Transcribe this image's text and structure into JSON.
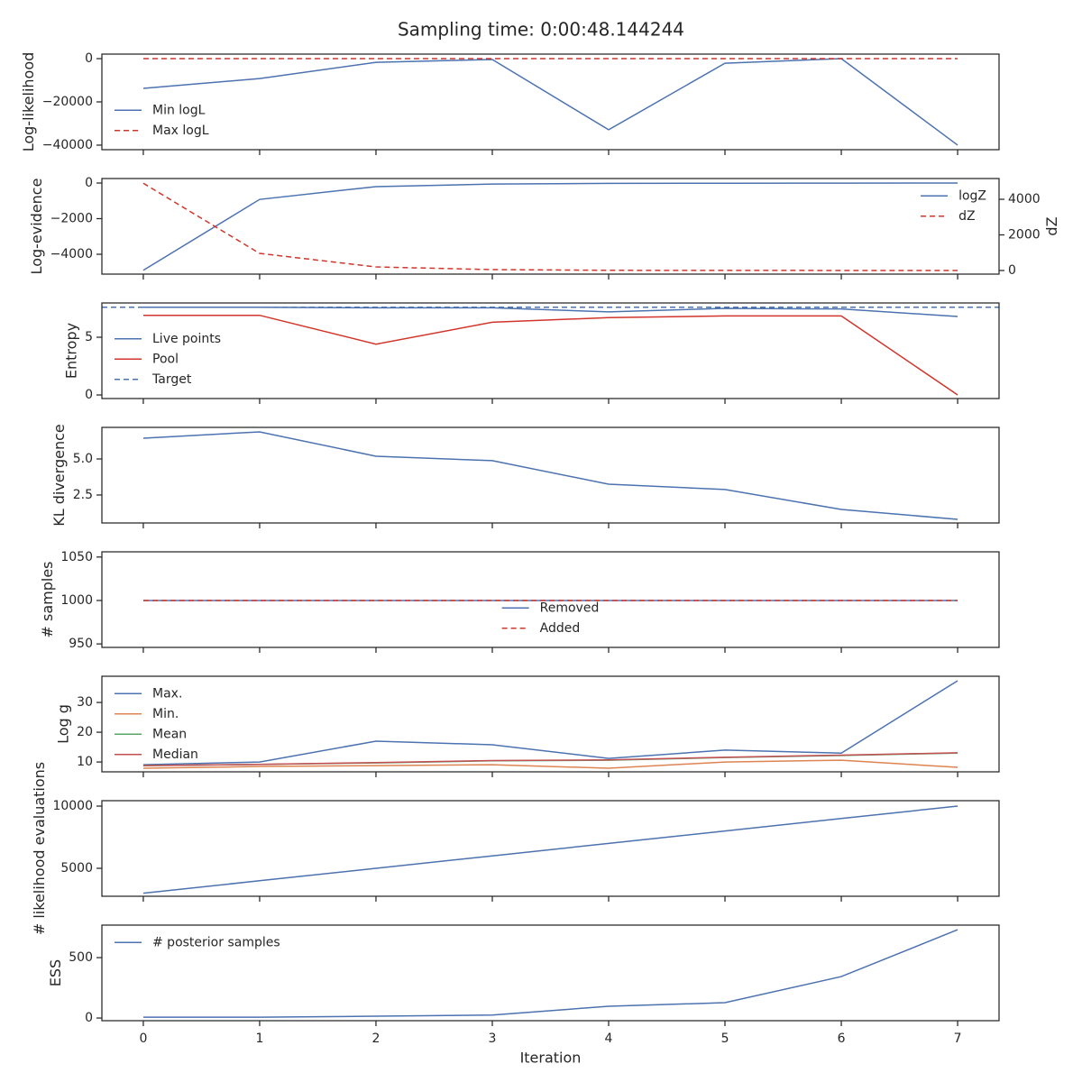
{
  "title": "Sampling time: 0:00:48.144244",
  "chart_data": [
    {
      "type": "line",
      "ylabel": "Log-likelihood",
      "x": [
        0,
        1,
        2,
        3,
        4,
        5,
        6,
        7
      ],
      "xlim": [
        -0.356,
        7.356
      ],
      "xticks": [
        0,
        1,
        2,
        3,
        4,
        5,
        6,
        7
      ],
      "ylim": [
        -42100,
        2100
      ],
      "yticks": [
        {
          "value": -40000,
          "label": "−40000"
        },
        {
          "value": -20000,
          "label": "−20000"
        },
        0
      ],
      "legend": "lower left",
      "series": [
        {
          "name": "Min logL",
          "color": "#4c72b0",
          "linestyle": "solid",
          "values": [
            -13750,
            -9200,
            -1700,
            -400,
            -32900,
            -2100,
            0,
            -40000
          ]
        },
        {
          "name": "Max logL",
          "color": "#d1352b",
          "linestyle": "dashed",
          "values": [
            0,
            0,
            0,
            0,
            0,
            0,
            0,
            0
          ]
        }
      ]
    },
    {
      "type": "line",
      "ylabel": "Log-evidence",
      "y2label": "dZ",
      "x": [
        0,
        1,
        2,
        3,
        4,
        5,
        6,
        7
      ],
      "xlim": [
        -0.356,
        7.356
      ],
      "xticks": [
        0,
        1,
        2,
        3,
        4,
        5,
        6,
        7
      ],
      "ylim": [
        -5114,
        253
      ],
      "yticks": [
        {
          "value": -4000,
          "label": "−4000"
        },
        {
          "value": -2000,
          "label": "−2000"
        },
        0
      ],
      "y2lim": [
        -203,
        5165
      ],
      "y2ticks": [
        0,
        2000,
        4000
      ],
      "legend": "upper right",
      "series": [
        {
          "name": "logZ",
          "color": "#4c72b0",
          "linestyle": "solid",
          "values": [
            -4900,
            -920,
            -200,
            -60,
            -20,
            -10,
            -5,
            -2
          ]
        },
        {
          "name": "dZ",
          "color": "#d1352b",
          "linestyle": "dashed",
          "axis": "y2",
          "values": [
            4900,
            960,
            200,
            50,
            10,
            5,
            2,
            1
          ]
        }
      ]
    },
    {
      "type": "line",
      "ylabel": "Entropy",
      "x": [
        0,
        1,
        2,
        3,
        4,
        5,
        6,
        7
      ],
      "xlim": [
        -0.356,
        7.356
      ],
      "xticks": [
        0,
        1,
        2,
        3,
        4,
        5,
        6,
        7
      ],
      "ylim": [
        -0.31,
        7.97
      ],
      "yticks": [
        0,
        5
      ],
      "legend": "lower left",
      "series": [
        {
          "name": "Live points",
          "color": "#4c72b0",
          "linestyle": "solid",
          "values": [
            7.6,
            7.6,
            7.55,
            7.55,
            7.2,
            7.5,
            7.45,
            6.8
          ]
        },
        {
          "name": "Pool",
          "color": "#d1352b",
          "linestyle": "solid",
          "values": [
            6.9,
            6.9,
            4.4,
            6.3,
            6.7,
            6.85,
            6.85,
            0
          ]
        }
      ],
      "hlines": [
        {
          "name": "Target",
          "color": "#4c72b0",
          "linestyle": "dashed",
          "value": 7.6
        }
      ]
    },
    {
      "type": "line",
      "ylabel": "KL divergence",
      "x": [
        0,
        1,
        2,
        3,
        4,
        5,
        6,
        7
      ],
      "xlim": [
        -0.356,
        7.356
      ],
      "xticks": [
        0,
        1,
        2,
        3,
        4,
        5,
        6,
        7
      ],
      "ylim": [
        0.56,
        7.19
      ],
      "yticks": [
        2.5,
        {
          "value": 5,
          "label": "5.0"
        }
      ],
      "series": [
        {
          "color": "#4c72b0",
          "linestyle": "solid",
          "values": [
            6.44,
            6.88,
            5.19,
            4.88,
            3.25,
            2.88,
            1.5,
            0.81
          ]
        }
      ]
    },
    {
      "type": "line",
      "ylabel": "# samples",
      "x": [
        0,
        1,
        2,
        3,
        4,
        5,
        6,
        7
      ],
      "xlim": [
        -0.356,
        7.356
      ],
      "xticks": [
        0,
        1,
        2,
        3,
        4,
        5,
        6,
        7
      ],
      "ylim": [
        946,
        1056
      ],
      "yticks": [
        950,
        1000,
        1050
      ],
      "legend": "lower center",
      "series": [
        {
          "name": "Removed",
          "color": "#4c72b0",
          "linestyle": "solid",
          "values": [
            1000,
            1000,
            1000,
            1000,
            1000,
            1000,
            1000,
            1000
          ]
        },
        {
          "name": "Added",
          "color": "#d1352b",
          "linestyle": "dashed",
          "values": [
            1000,
            1000,
            1000,
            1000,
            1000,
            1000,
            1000,
            1000
          ]
        }
      ]
    },
    {
      "type": "line",
      "ylabel": "Log g",
      "x": [
        0,
        1,
        2,
        3,
        4,
        5,
        6,
        7
      ],
      "xlim": [
        -0.356,
        7.356
      ],
      "xticks": [
        0,
        1,
        2,
        3,
        4,
        5,
        6,
        7
      ],
      "ylim": [
        6.7,
        38.8
      ],
      "yticks": [
        10,
        20,
        30
      ],
      "legend": "upper left",
      "series": [
        {
          "name": "Max.",
          "color": "#4c72b0",
          "linestyle": "solid",
          "values": [
            9.1,
            10,
            17,
            15.8,
            11.2,
            14,
            13,
            37.3
          ]
        },
        {
          "name": "Min.",
          "color": "#dd8452",
          "linestyle": "solid",
          "values": [
            7.9,
            8.5,
            8.8,
            9.1,
            7.9,
            10,
            10.6,
            8.2
          ]
        },
        {
          "name": "Mean",
          "color": "#55a868",
          "linestyle": "solid",
          "values": [
            8.8,
            9.2,
            9.7,
            10.4,
            10.6,
            11.5,
            12.2,
            13
          ]
        },
        {
          "name": "Median",
          "color": "#c44e52",
          "linestyle": "solid",
          "values": [
            8.8,
            9.2,
            9.8,
            10.5,
            10.7,
            11.6,
            12.3,
            13.1
          ]
        }
      ]
    },
    {
      "type": "line",
      "ylabel": "# likelihood evaluations",
      "x": [
        0,
        1,
        2,
        3,
        4,
        5,
        6,
        7
      ],
      "xlim": [
        -0.356,
        7.356
      ],
      "xticks": [
        0,
        1,
        2,
        3,
        4,
        5,
        6,
        7
      ],
      "ylim": [
        2754,
        10435
      ],
      "yticks": [
        5000,
        10000
      ],
      "series": [
        {
          "color": "#4c72b0",
          "linestyle": "solid",
          "values": [
            3000,
            4000,
            5000,
            6000,
            7000,
            8000,
            9000,
            10000
          ]
        }
      ]
    },
    {
      "type": "line",
      "ylabel": "ESS",
      "xlabel": "Iteration",
      "x": [
        0,
        1,
        2,
        3,
        4,
        5,
        6,
        7
      ],
      "xlim": [
        -0.356,
        7.356
      ],
      "xticks": [
        0,
        1,
        2,
        3,
        4,
        5,
        6,
        7
      ],
      "ylim": [
        -22,
        769
      ],
      "yticks": [
        0,
        500
      ],
      "legend": "upper left",
      "series": [
        {
          "name": "# posterior samples",
          "color": "#4c72b0",
          "linestyle": "solid",
          "values": [
            7,
            7,
            15,
            25,
            97,
            127,
            343,
            731
          ]
        }
      ]
    }
  ]
}
